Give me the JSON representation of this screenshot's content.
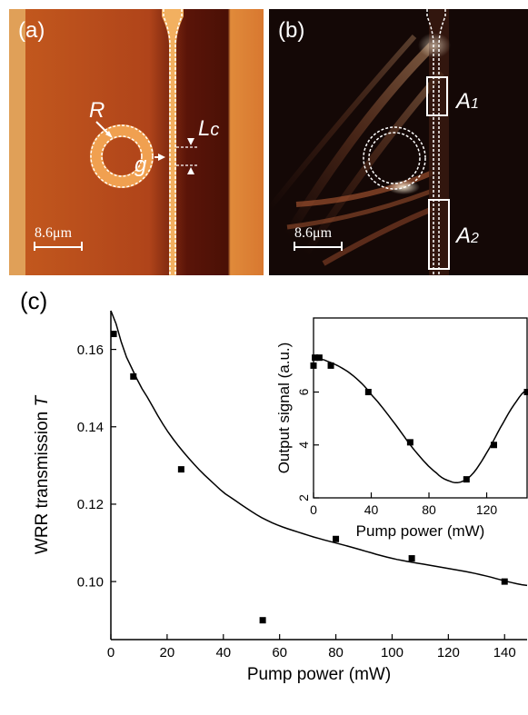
{
  "panels": {
    "a": {
      "label": "(a)",
      "scale_bar": "8.6μm",
      "annot_R": "R",
      "annot_Lc_L": "L",
      "annot_Lc_sub": "c",
      "annot_g": "g"
    },
    "b": {
      "label": "(b)",
      "scale_bar": "8.6μm",
      "annot_A1": "A",
      "annot_A1_sub": "1",
      "annot_A2": "A",
      "annot_A2_sub": "2"
    },
    "c": {
      "label": "(c)"
    }
  },
  "colors": {
    "afm_bg": "#c0501a",
    "afm_ring": "#f0a050",
    "nsom_bg": "#140806",
    "nsom_glow": "#e8c8a0"
  },
  "chart_data": [
    {
      "type": "scatter",
      "xlabel": "Pump power (mW)",
      "ylabel": "WRR transmission T",
      "ylabel_main": "WRR transmission ",
      "ylabel_italic": "T",
      "xlim": [
        0,
        148
      ],
      "ylim": [
        0.085,
        0.17
      ],
      "xticks": [
        0,
        20,
        40,
        60,
        80,
        100,
        120,
        140
      ],
      "yticks": [
        0.1,
        0.12,
        0.14,
        0.16
      ],
      "ytick_labels": [
        "0.10",
        "0.12",
        "0.14",
        "0.16"
      ],
      "series": [
        {
          "kind": "points",
          "x": [
            1,
            8,
            25,
            54,
            80,
            107,
            140
          ],
          "y": [
            0.164,
            0.153,
            0.129,
            0.09,
            0.111,
            0.106,
            0.1
          ]
        },
        {
          "kind": "fit",
          "x": [
            0,
            5,
            10,
            20,
            30,
            40,
            55,
            70,
            85,
            100,
            115,
            130,
            148
          ],
          "y": [
            0.17,
            0.159,
            0.151,
            0.139,
            0.13,
            0.123,
            0.116,
            0.112,
            0.109,
            0.106,
            0.104,
            0.102,
            0.099
          ]
        }
      ]
    },
    {
      "type": "scatter",
      "xlabel": "Pump power (mW)",
      "ylabel": "Output signal (a.u.)",
      "xlim": [
        0,
        148
      ],
      "ylim": [
        2,
        8.8
      ],
      "xticks": [
        0,
        40,
        80,
        120
      ],
      "yticks": [
        2,
        4,
        6
      ],
      "series": [
        {
          "kind": "points",
          "x": [
            0,
            1,
            4,
            12,
            38,
            67,
            106,
            125,
            148
          ],
          "y": [
            7.0,
            7.3,
            7.3,
            7.0,
            6.0,
            4.1,
            2.7,
            4.0,
            6.0
          ]
        },
        {
          "kind": "fit",
          "x": [
            0,
            4,
            10,
            20,
            30,
            40,
            55,
            70,
            85,
            95,
            102,
            110,
            120,
            130,
            140,
            148
          ],
          "y": [
            7.2,
            7.25,
            7.15,
            6.9,
            6.5,
            5.9,
            4.9,
            3.8,
            2.95,
            2.62,
            2.6,
            2.9,
            3.7,
            4.7,
            5.6,
            6.1
          ]
        }
      ]
    }
  ]
}
